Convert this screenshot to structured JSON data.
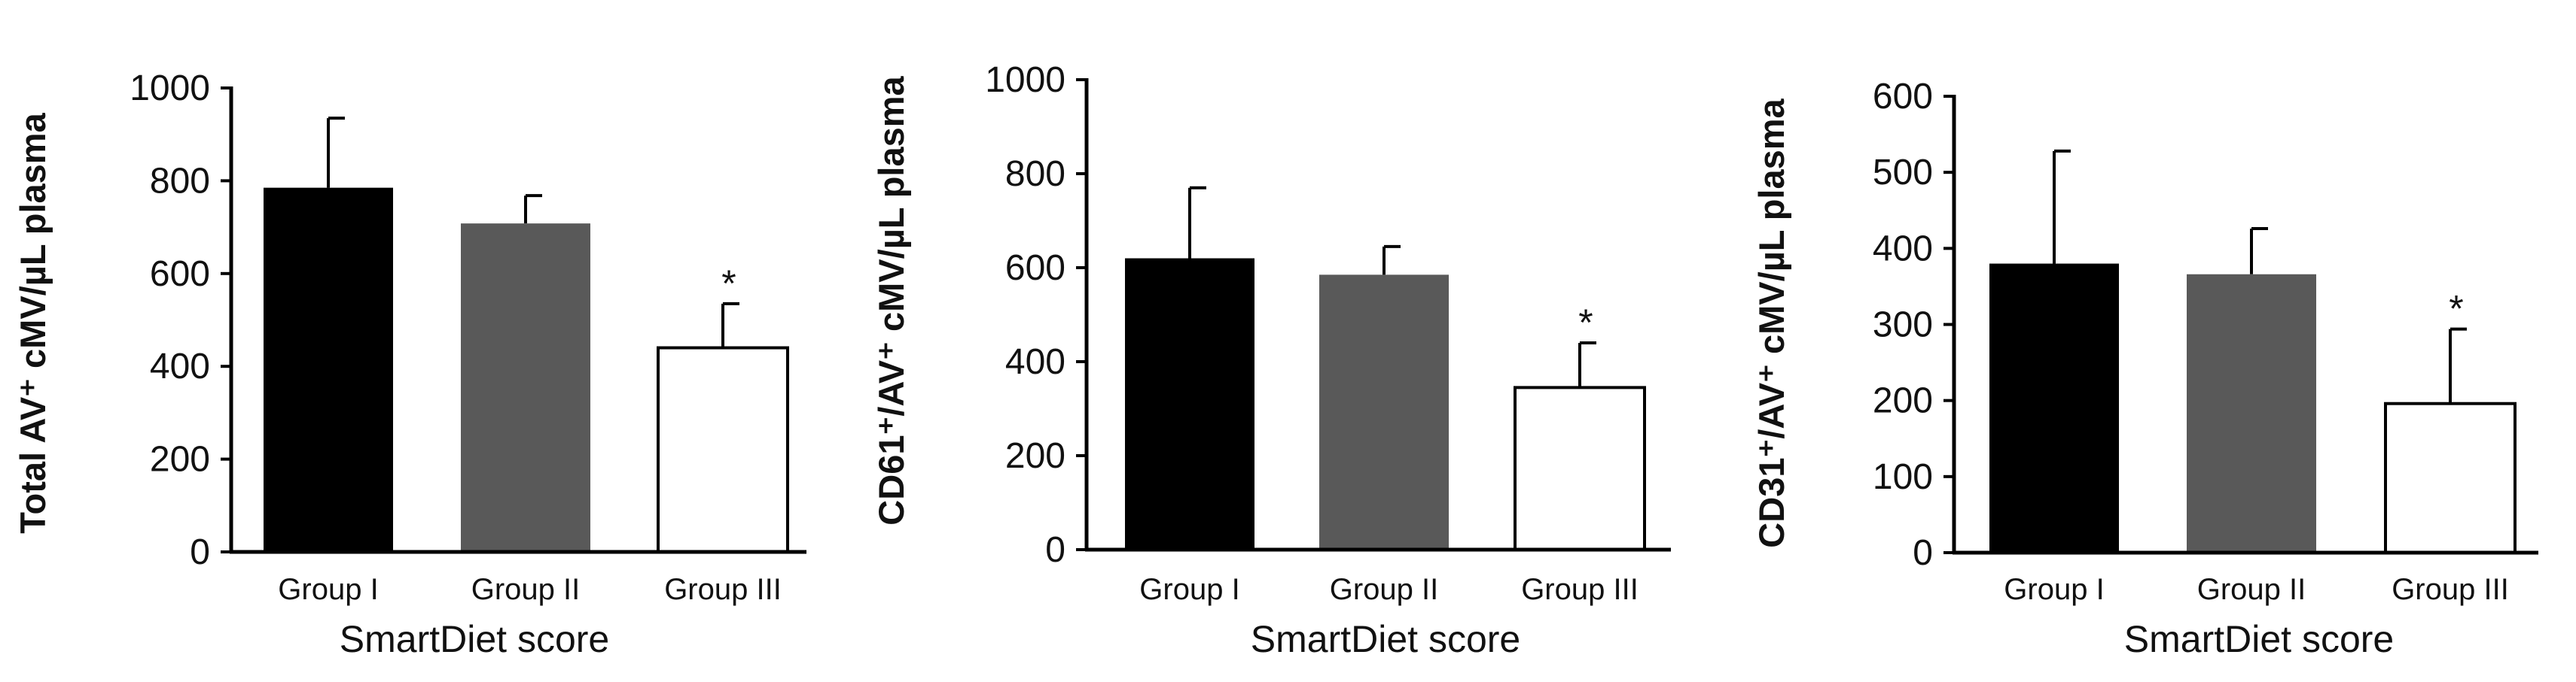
{
  "chart_data": [
    {
      "type": "bar",
      "ylabel": "Total AV⁺ cMV/µL plasma",
      "xlabel": "SmartDiet score",
      "categories": [
        "Group I",
        "Group II",
        "Group III"
      ],
      "values": [
        785,
        708,
        440
      ],
      "errors": [
        150,
        60,
        95
      ],
      "significance": [
        "",
        "",
        "*"
      ],
      "ylim": [
        0,
        1000
      ],
      "yticks": [
        0,
        200,
        400,
        600,
        800,
        1000
      ],
      "bar_colors": [
        "#000000",
        "#595959",
        "#ffffff"
      ]
    },
    {
      "type": "bar",
      "ylabel": "CD61⁺/AV⁺ cMV/µL plasma",
      "xlabel": "SmartDiet score",
      "categories": [
        "Group I",
        "Group II",
        "Group III"
      ],
      "values": [
        620,
        585,
        345
      ],
      "errors": [
        150,
        60,
        95
      ],
      "significance": [
        "",
        "",
        "*"
      ],
      "ylim": [
        0,
        1000
      ],
      "yticks": [
        0,
        200,
        400,
        600,
        800,
        1000
      ],
      "bar_colors": [
        "#000000",
        "#595959",
        "#ffffff"
      ]
    },
    {
      "type": "bar",
      "ylabel": "CD31⁺/AV⁺ cMV/µL plasma",
      "xlabel": "SmartDiet score",
      "categories": [
        "Group I",
        "Group II",
        "Group III"
      ],
      "values": [
        380,
        366,
        196
      ],
      "errors": [
        148,
        60,
        98
      ],
      "significance": [
        "",
        "",
        "*"
      ],
      "ylim": [
        0,
        600
      ],
      "yticks": [
        0,
        100,
        200,
        300,
        400,
        500,
        600
      ],
      "bar_colors": [
        "#000000",
        "#595959",
        "#ffffff"
      ]
    }
  ]
}
